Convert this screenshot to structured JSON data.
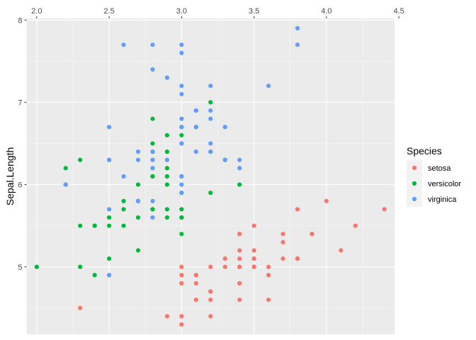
{
  "chart_data": {
    "type": "scatter",
    "title": "",
    "xlabel": "",
    "ylabel": "Sepal.Length",
    "x_position": "top",
    "xlim": [
      1.93,
      4.47
    ],
    "ylim": [
      4.18,
      8.02
    ],
    "x_ticks": [
      "2.0",
      "2.5",
      "3.0",
      "3.5",
      "4.0",
      "4.5"
    ],
    "x_tick_values": [
      2.0,
      2.5,
      3.0,
      3.5,
      4.0,
      4.5
    ],
    "y_ticks": [
      "5",
      "6",
      "7",
      "8"
    ],
    "y_tick_values": [
      5,
      6,
      7,
      8
    ],
    "grid": true,
    "legend": {
      "title": "Species",
      "position": "right"
    },
    "series": [
      {
        "name": "setosa",
        "color": "#F8766D",
        "points": [
          [
            3.5,
            5.1
          ],
          [
            3.0,
            4.9
          ],
          [
            3.2,
            4.7
          ],
          [
            3.1,
            4.6
          ],
          [
            3.6,
            5.0
          ],
          [
            3.9,
            5.4
          ],
          [
            3.4,
            4.6
          ],
          [
            3.4,
            5.0
          ],
          [
            2.9,
            4.4
          ],
          [
            3.1,
            4.9
          ],
          [
            3.7,
            5.4
          ],
          [
            3.4,
            4.8
          ],
          [
            3.0,
            4.8
          ],
          [
            3.0,
            4.3
          ],
          [
            4.0,
            5.8
          ],
          [
            4.4,
            5.7
          ],
          [
            3.9,
            5.4
          ],
          [
            3.5,
            5.1
          ],
          [
            3.8,
            5.7
          ],
          [
            3.8,
            5.1
          ],
          [
            3.4,
            5.4
          ],
          [
            3.7,
            5.1
          ],
          [
            3.6,
            4.6
          ],
          [
            3.3,
            5.1
          ],
          [
            3.4,
            4.8
          ],
          [
            3.0,
            5.0
          ],
          [
            3.4,
            5.0
          ],
          [
            3.5,
            5.2
          ],
          [
            3.4,
            5.2
          ],
          [
            3.2,
            4.7
          ],
          [
            3.1,
            4.8
          ],
          [
            3.4,
            5.4
          ],
          [
            4.1,
            5.2
          ],
          [
            4.2,
            5.5
          ],
          [
            3.1,
            4.9
          ],
          [
            3.2,
            5.0
          ],
          [
            3.5,
            5.5
          ],
          [
            3.6,
            4.9
          ],
          [
            3.0,
            4.4
          ],
          [
            3.4,
            5.1
          ],
          [
            3.5,
            5.0
          ],
          [
            2.3,
            4.5
          ],
          [
            3.2,
            4.4
          ],
          [
            3.5,
            5.0
          ],
          [
            3.8,
            5.1
          ],
          [
            3.0,
            4.8
          ],
          [
            3.8,
            5.1
          ],
          [
            3.2,
            4.6
          ],
          [
            3.7,
            5.3
          ],
          [
            3.3,
            5.0
          ]
        ]
      },
      {
        "name": "versicolor",
        "color": "#00BA38",
        "points": [
          [
            3.2,
            7.0
          ],
          [
            3.2,
            6.4
          ],
          [
            3.1,
            6.9
          ],
          [
            2.3,
            5.5
          ],
          [
            2.8,
            6.5
          ],
          [
            2.8,
            5.7
          ],
          [
            3.3,
            6.3
          ],
          [
            2.4,
            4.9
          ],
          [
            2.9,
            6.6
          ],
          [
            2.7,
            5.2
          ],
          [
            2.0,
            5.0
          ],
          [
            3.0,
            5.9
          ],
          [
            2.2,
            6.0
          ],
          [
            2.9,
            6.1
          ],
          [
            2.9,
            5.6
          ],
          [
            3.1,
            6.7
          ],
          [
            3.0,
            5.6
          ],
          [
            2.7,
            5.8
          ],
          [
            2.2,
            6.2
          ],
          [
            2.5,
            5.6
          ],
          [
            3.2,
            5.9
          ],
          [
            2.8,
            6.1
          ],
          [
            2.5,
            6.3
          ],
          [
            2.8,
            6.1
          ],
          [
            2.9,
            6.4
          ],
          [
            3.0,
            6.6
          ],
          [
            2.8,
            6.8
          ],
          [
            3.0,
            6.7
          ],
          [
            2.9,
            6.0
          ],
          [
            2.6,
            5.7
          ],
          [
            2.4,
            5.5
          ],
          [
            2.4,
            5.5
          ],
          [
            2.7,
            5.8
          ],
          [
            2.7,
            6.0
          ],
          [
            3.0,
            5.4
          ],
          [
            3.4,
            6.0
          ],
          [
            3.1,
            6.7
          ],
          [
            2.3,
            6.3
          ],
          [
            3.0,
            5.6
          ],
          [
            2.5,
            5.5
          ],
          [
            2.6,
            5.5
          ],
          [
            3.0,
            6.1
          ],
          [
            2.6,
            5.8
          ],
          [
            2.3,
            5.0
          ],
          [
            2.7,
            5.6
          ],
          [
            3.0,
            5.7
          ],
          [
            2.9,
            5.7
          ],
          [
            2.9,
            6.2
          ],
          [
            2.5,
            5.1
          ],
          [
            2.8,
            5.7
          ]
        ]
      },
      {
        "name": "virginica",
        "color": "#619CFF",
        "points": [
          [
            3.3,
            6.3
          ],
          [
            2.7,
            5.8
          ],
          [
            3.0,
            7.1
          ],
          [
            2.9,
            6.3
          ],
          [
            3.0,
            6.5
          ],
          [
            3.0,
            7.6
          ],
          [
            2.5,
            4.9
          ],
          [
            2.9,
            7.3
          ],
          [
            2.5,
            6.7
          ],
          [
            3.6,
            7.2
          ],
          [
            3.2,
            6.5
          ],
          [
            2.7,
            6.4
          ],
          [
            3.0,
            6.8
          ],
          [
            2.5,
            5.7
          ],
          [
            2.8,
            5.8
          ],
          [
            3.2,
            6.4
          ],
          [
            3.0,
            6.5
          ],
          [
            3.8,
            7.7
          ],
          [
            2.6,
            7.7
          ],
          [
            2.2,
            6.0
          ],
          [
            3.2,
            6.9
          ],
          [
            2.8,
            5.6
          ],
          [
            2.8,
            7.7
          ],
          [
            2.7,
            6.3
          ],
          [
            3.3,
            6.7
          ],
          [
            3.2,
            7.2
          ],
          [
            2.8,
            6.2
          ],
          [
            3.0,
            6.1
          ],
          [
            2.8,
            6.4
          ],
          [
            3.0,
            7.2
          ],
          [
            2.8,
            7.4
          ],
          [
            3.8,
            7.9
          ],
          [
            2.8,
            6.4
          ],
          [
            2.8,
            6.3
          ],
          [
            2.6,
            6.1
          ],
          [
            3.0,
            7.7
          ],
          [
            3.4,
            6.3
          ],
          [
            3.1,
            6.4
          ],
          [
            3.0,
            6.0
          ],
          [
            3.1,
            6.9
          ],
          [
            3.1,
            6.7
          ],
          [
            3.1,
            6.9
          ],
          [
            2.7,
            5.8
          ],
          [
            3.2,
            6.8
          ],
          [
            3.3,
            6.7
          ],
          [
            3.0,
            6.7
          ],
          [
            2.5,
            6.3
          ],
          [
            3.0,
            6.5
          ],
          [
            3.4,
            6.2
          ],
          [
            3.0,
            5.9
          ]
        ]
      }
    ]
  }
}
